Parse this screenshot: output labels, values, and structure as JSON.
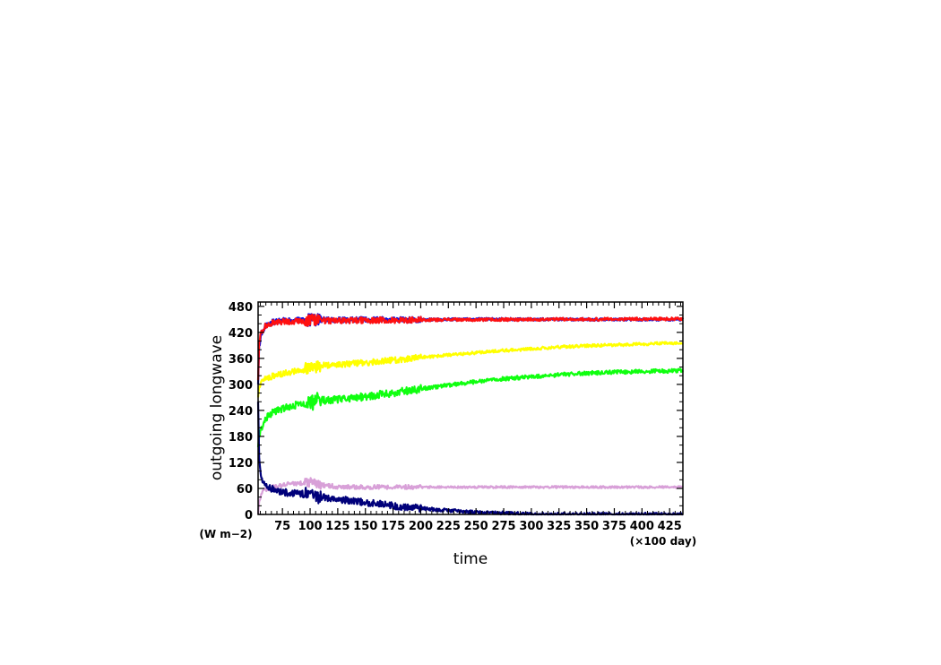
{
  "chart_data": {
    "type": "line",
    "title": "",
    "xlabel": "time",
    "ylabel": "outgoing longwave",
    "xunits": "(×100 day)",
    "yunits": "(W m−2)",
    "xlim": [
      53,
      437
    ],
    "ylim": [
      0,
      490
    ],
    "xticks": [
      75,
      100,
      125,
      150,
      175,
      200,
      225,
      250,
      275,
      300,
      325,
      350,
      375,
      400,
      425
    ],
    "yticks": [
      0,
      60,
      120,
      180,
      240,
      300,
      360,
      420,
      480
    ],
    "grid": false,
    "series": [
      {
        "color": "#1010e0",
        "noise": 7,
        "x": [
          53,
          54,
          56,
          58,
          60,
          65,
          70,
          75,
          80,
          90,
          100,
          110,
          125,
          150,
          175,
          200,
          250,
          300,
          350,
          400,
          437
        ],
        "values": [
          300,
          390,
          415,
          428,
          436,
          442,
          445,
          447,
          447,
          448,
          448,
          448,
          448,
          449,
          449,
          449,
          450,
          450,
          450,
          450,
          450
        ]
      },
      {
        "color": "#ff1010",
        "noise": 7,
        "x": [
          53,
          54,
          56,
          58,
          60,
          65,
          70,
          75,
          80,
          90,
          100,
          110,
          125,
          150,
          175,
          200,
          250,
          300,
          350,
          400,
          437
        ],
        "values": [
          310,
          400,
          420,
          430,
          436,
          441,
          443,
          445,
          445,
          446,
          447,
          447,
          447,
          448,
          448,
          449,
          449,
          450,
          450,
          451,
          451
        ]
      },
      {
        "color": "#ffff00",
        "noise": 7,
        "x": [
          53,
          54,
          56,
          58,
          60,
          65,
          70,
          80,
          90,
          100,
          110,
          125,
          150,
          175,
          200,
          225,
          250,
          275,
          300,
          325,
          350,
          375,
          400,
          425,
          437
        ],
        "values": [
          270,
          295,
          305,
          310,
          314,
          318,
          322,
          327,
          332,
          337,
          343,
          346,
          350,
          356,
          362,
          368,
          373,
          378,
          382,
          386,
          389,
          391,
          393,
          395,
          396
        ]
      },
      {
        "color": "#10ff10",
        "noise": 9,
        "x": [
          53,
          54,
          56,
          58,
          60,
          65,
          70,
          80,
          90,
          100,
          110,
          125,
          150,
          175,
          200,
          225,
          250,
          275,
          300,
          325,
          350,
          375,
          400,
          425,
          437
        ],
        "values": [
          155,
          180,
          200,
          212,
          220,
          232,
          240,
          248,
          255,
          258,
          262,
          266,
          272,
          280,
          290,
          298,
          306,
          313,
          318,
          322,
          326,
          328,
          330,
          331,
          332
        ]
      },
      {
        "color": "#d8a0d8",
        "noise": 5,
        "x": [
          53,
          54,
          56,
          58,
          60,
          65,
          70,
          80,
          90,
          100,
          110,
          125,
          150,
          200,
          300,
          400,
          437
        ],
        "values": [
          0,
          30,
          48,
          55,
          58,
          62,
          65,
          70,
          72,
          74,
          68,
          64,
          63,
          63,
          63,
          63,
          63
        ]
      },
      {
        "color": "#00007a",
        "noise": 8,
        "x": [
          53,
          54,
          55,
          56,
          58,
          60,
          65,
          70,
          80,
          90,
          100,
          110,
          125,
          150,
          175,
          200,
          225,
          250,
          275,
          300,
          325,
          350,
          437
        ],
        "values": [
          260,
          130,
          100,
          85,
          72,
          65,
          60,
          55,
          50,
          48,
          45,
          40,
          35,
          28,
          20,
          14,
          9,
          5,
          3,
          1,
          0,
          0,
          0
        ]
      }
    ]
  }
}
